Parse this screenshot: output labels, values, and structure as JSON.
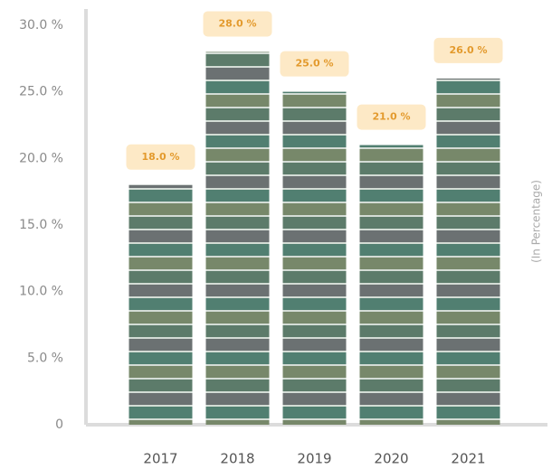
{
  "chart_data": {
    "type": "bar",
    "categories": [
      "2017",
      "2018",
      "2019",
      "2020",
      "2021"
    ],
    "values": [
      18,
      28,
      25,
      21,
      26
    ],
    "value_labels": [
      "18.0 %",
      "28.0 %",
      "25.0 %",
      "21.0 %",
      "26.0 %"
    ],
    "color": "#5f7f6c",
    "ylabel": "(In Percentage)",
    "ylim": [
      0,
      30
    ],
    "yticks": [
      0,
      {
        "value": 5,
        "label": "5.0 %"
      },
      {
        "value": 10,
        "label": "10.0 %"
      },
      {
        "value": 15,
        "label": "15.0 %"
      },
      {
        "value": 20,
        "label": "20.0 %"
      },
      {
        "value": 25,
        "label": "25.0 %"
      },
      {
        "value": 30,
        "label": "30.0 %"
      }
    ]
  }
}
